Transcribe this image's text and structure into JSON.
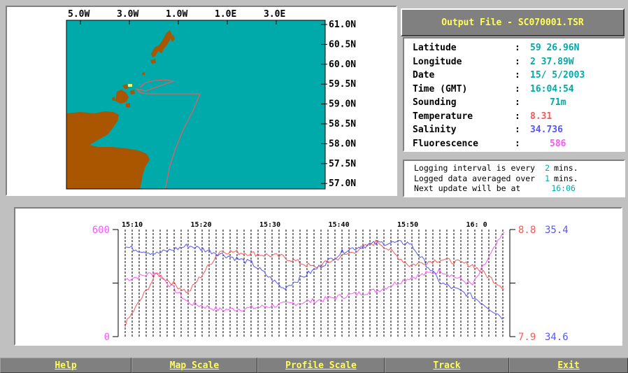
{
  "map": {
    "lon_labels": [
      "5.0W",
      "3.0W",
      "1.0W",
      "1.0E",
      "3.0E"
    ],
    "lat_labels": [
      "61.0N",
      "60.5N",
      "60.0N",
      "59.5N",
      "59.0N",
      "58.5N",
      "58.0N",
      "57.5N",
      "57.0N"
    ],
    "colors": {
      "sea": "#00aaaa",
      "land": "#aa5500",
      "track": "#e06060",
      "ship": "#ffff55"
    }
  },
  "output": {
    "title": "Output File - SC070001.TSR"
  },
  "info": [
    {
      "label": "Latitude",
      "value": "59 26.96N",
      "color": "#00aaaa"
    },
    {
      "label": "Longitude",
      "value": "2 37.89W",
      "color": "#00aaaa"
    },
    {
      "label": "Date",
      "value": "15/ 5/2003",
      "color": "#00aaaa"
    },
    {
      "label": "Time (GMT)",
      "value": "16:04:54",
      "color": "#00aaaa"
    },
    {
      "label": "Sounding",
      "value": "71m",
      "color": "#00aaaa"
    },
    {
      "label": "Temperature",
      "value": "8.31",
      "color": "#ff5555"
    },
    {
      "label": "Salinity",
      "value": "34.736",
      "color": "#5555ff"
    },
    {
      "label": "Fluorescence",
      "value": "586",
      "color": "#ff55ff"
    }
  ],
  "logging": {
    "line1_text": "Logging interval is every",
    "line1_value": "2",
    "line1_unit": "mins.",
    "line2_text": "Logged data averaged over",
    "line2_value": "1",
    "line2_unit": "mins.",
    "line3_text": "Next update will be at",
    "line3_value": "16:06"
  },
  "profile": {
    "time_labels": [
      "15:10",
      "15:20",
      "15:30",
      "15:40",
      "15:50",
      "16: 0"
    ],
    "fluor_max": "600",
    "fluor_min": "0",
    "temp_max": "8.8",
    "temp_min": "7.9",
    "sal_max": "35.4",
    "sal_min": "34.6",
    "colors": {
      "fluorescence": "#ff55ff",
      "temperature": "#ff5555",
      "salinity": "#5555ff"
    }
  },
  "chart_data": {
    "type": "line",
    "x_unit": "time (GMT)",
    "x": [
      "15:05",
      "15:10",
      "15:15",
      "15:20",
      "15:25",
      "15:30",
      "15:35",
      "15:40",
      "15:45",
      "15:50",
      "15:55",
      "16:00",
      "16:05"
    ],
    "series": [
      {
        "name": "Fluorescence",
        "axis": "left",
        "ylim": [
          0,
          600
        ],
        "values": [
          320,
          360,
          190,
          150,
          160,
          180,
          200,
          230,
          260,
          330,
          370,
          290,
          586
        ]
      },
      {
        "name": "Temperature",
        "axis": "right",
        "ylim": [
          7.9,
          8.8
        ],
        "values": [
          8.0,
          8.43,
          8.27,
          8.62,
          8.6,
          8.57,
          8.48,
          8.59,
          8.7,
          8.5,
          8.55,
          8.5,
          8.31
        ]
      },
      {
        "name": "Salinity",
        "axis": "right",
        "ylim": [
          34.6,
          35.4
        ],
        "values": [
          35.27,
          35.22,
          35.28,
          35.22,
          35.15,
          34.96,
          35.1,
          35.25,
          35.3,
          35.3,
          35.0,
          34.9,
          34.736
        ]
      }
    ]
  },
  "menu": [
    {
      "label": "Help"
    },
    {
      "label": "Map Scale"
    },
    {
      "label": "Profile Scale"
    },
    {
      "label": "Track"
    },
    {
      "label": "Exit"
    }
  ]
}
